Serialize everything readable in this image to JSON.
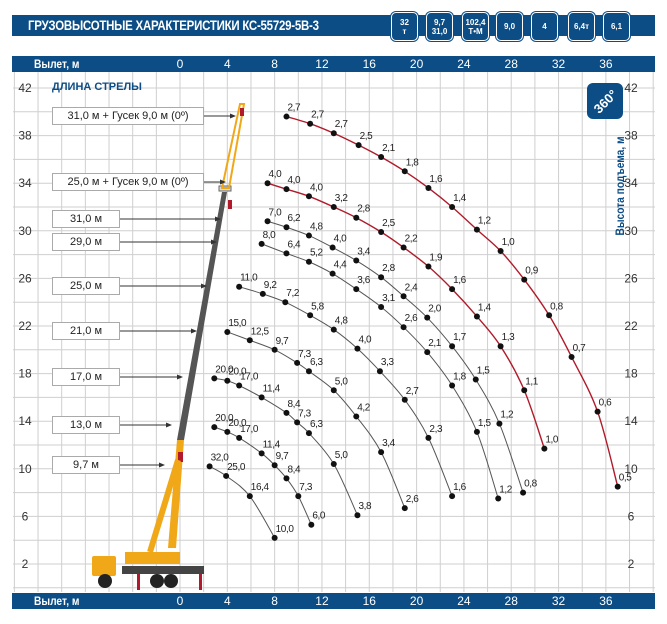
{
  "header": {
    "title": "ГРУЗОВЫСОТНЫЕ ХАРАКТЕРИСТИКИ КС-55729-5В-3",
    "icons": [
      {
        "name": "kettlebell-icon",
        "lines": [
          "32",
          "т"
        ]
      },
      {
        "name": "telescopic-boom-icon",
        "lines": [
          "9,7",
          "31,0"
        ]
      },
      {
        "name": "load-moment-icon",
        "lines": [
          "102,4",
          "Т•М"
        ]
      },
      {
        "name": "jib-icon",
        "lines": [
          "9,0"
        ]
      },
      {
        "name": "sections-icon",
        "lines": [
          "4"
        ]
      },
      {
        "name": "counterweight-icon",
        "lines": [
          "6,4т"
        ]
      },
      {
        "name": "outrigger-base-icon",
        "lines": [
          "6,1"
        ]
      }
    ]
  },
  "axis": {
    "x_label": "Вылет, м",
    "y_label": "Высота подъема, м",
    "x_ticks": [
      "0",
      "4",
      "8",
      "12",
      "16",
      "20",
      "24",
      "28",
      "32",
      "36"
    ],
    "y_ticks": [
      "42",
      "38",
      "34",
      "30",
      "26",
      "22",
      "18",
      "14",
      "10",
      "6",
      "2"
    ]
  },
  "boom_title": "ДЛИНА СТРЕЛЫ",
  "rotation_badge": "360°",
  "colors": {
    "brand": "#0d4d85",
    "jib_curve": "#b01a2a",
    "boom_curve": "#555555",
    "crane": "#f0a818"
  },
  "chart_data": {
    "type": "line",
    "xlabel": "Вылет, м",
    "ylabel": "Высота подъема, м",
    "xlim": [
      -14,
      40
    ],
    "ylim": [
      0,
      43
    ],
    "grid": true,
    "note_point_format": "[radius m, height m, load t]",
    "series": [
      {
        "name": "31,0 м + Гусек 9,0 м (0º)",
        "jib": true,
        "points": [
          [
            9.0,
            39.6,
            "2,7"
          ],
          [
            11.0,
            39.0,
            "2,7"
          ],
          [
            13.0,
            38.2,
            "2,7"
          ],
          [
            15.1,
            37.2,
            "2,5"
          ],
          [
            17.0,
            36.2,
            "2,1"
          ],
          [
            19.0,
            35.0,
            "1,8"
          ],
          [
            21.0,
            33.6,
            "1,6"
          ],
          [
            23.0,
            32.0,
            "1,4"
          ],
          [
            25.1,
            30.1,
            "1,2"
          ],
          [
            27.1,
            28.3,
            "1,0"
          ],
          [
            29.1,
            25.9,
            "0,9"
          ],
          [
            31.2,
            22.9,
            "0,8"
          ],
          [
            33.1,
            19.4,
            "0,7"
          ],
          [
            35.3,
            14.8,
            "0,6"
          ],
          [
            37.0,
            8.5,
            "0,5"
          ]
        ]
      },
      {
        "name": "25,0 м + Гусек 9,0 м (0º)",
        "jib": true,
        "points": [
          [
            7.4,
            34.0,
            "4,0"
          ],
          [
            9.0,
            33.5,
            "4,0"
          ],
          [
            10.9,
            32.9,
            "4,0"
          ],
          [
            13.0,
            32.0,
            "3,2"
          ],
          [
            14.9,
            31.1,
            "2,8"
          ],
          [
            17.0,
            29.9,
            "2,5"
          ],
          [
            18.9,
            28.6,
            "2,2"
          ],
          [
            21.0,
            27.0,
            "1,9"
          ],
          [
            23.0,
            25.1,
            "1,6"
          ],
          [
            25.1,
            22.8,
            "1,4"
          ],
          [
            27.1,
            20.3,
            "1,3"
          ],
          [
            29.1,
            16.6,
            "1,1"
          ],
          [
            30.8,
            11.7,
            "1,0"
          ]
        ]
      },
      {
        "name": "31,0 м",
        "jib": false,
        "points": [
          [
            7.4,
            30.8,
            "7,0"
          ],
          [
            9.0,
            30.3,
            "6,2"
          ],
          [
            10.9,
            29.6,
            "4,8"
          ],
          [
            12.9,
            28.6,
            "4,0"
          ],
          [
            14.9,
            27.5,
            "3,4"
          ],
          [
            17.0,
            26.1,
            "2,8"
          ],
          [
            18.9,
            24.5,
            "2,4"
          ],
          [
            20.9,
            22.7,
            "2,0"
          ],
          [
            23.0,
            20.3,
            "1,7"
          ],
          [
            25.0,
            17.5,
            "1,5"
          ],
          [
            27.0,
            13.8,
            "1,2"
          ],
          [
            29.0,
            8.0,
            "0,8"
          ]
        ]
      },
      {
        "name": "29,0 м",
        "jib": false,
        "points": [
          [
            6.9,
            28.9,
            "8,0"
          ],
          [
            9.0,
            28.1,
            "6,4"
          ],
          [
            10.9,
            27.4,
            "5,2"
          ],
          [
            12.9,
            26.4,
            "4,4"
          ],
          [
            14.9,
            25.1,
            "3,6"
          ],
          [
            17.0,
            23.6,
            "3,1"
          ],
          [
            18.9,
            21.9,
            "2,6"
          ],
          [
            20.9,
            19.8,
            "2,1"
          ],
          [
            23.0,
            17.0,
            "1,8"
          ],
          [
            25.1,
            13.1,
            "1,5"
          ],
          [
            26.9,
            7.5,
            "1,2"
          ]
        ]
      },
      {
        "name": "25,0 м",
        "jib": false,
        "points": [
          [
            5.0,
            25.3,
            "11,0"
          ],
          [
            7.0,
            24.7,
            "9,2"
          ],
          [
            8.9,
            24.0,
            "7,2"
          ],
          [
            11.0,
            22.9,
            "5,8"
          ],
          [
            13.0,
            21.7,
            "4,8"
          ],
          [
            15.0,
            20.1,
            "4,0"
          ],
          [
            16.9,
            18.2,
            "3,3"
          ],
          [
            19.0,
            15.8,
            "2,7"
          ],
          [
            21.0,
            12.6,
            "2,3"
          ],
          [
            23.0,
            7.7,
            "1,6"
          ]
        ]
      },
      {
        "name": "21,0 м",
        "jib": false,
        "points": [
          [
            4.0,
            21.5,
            "15,0"
          ],
          [
            5.9,
            20.8,
            "12,5"
          ],
          [
            8.0,
            20.0,
            "9,7"
          ],
          [
            9.9,
            18.9,
            "7,3"
          ],
          [
            10.9,
            18.2,
            "6,3"
          ],
          [
            13.0,
            16.6,
            "5,0"
          ],
          [
            14.9,
            14.4,
            "4,2"
          ],
          [
            17.0,
            11.4,
            "3,4"
          ],
          [
            19.0,
            6.7,
            "2,6"
          ]
        ]
      },
      {
        "name": "17,0 м",
        "jib": false,
        "points": [
          [
            2.9,
            17.6,
            "20,0"
          ],
          [
            4.0,
            17.4,
            "20,0"
          ],
          [
            5.0,
            17.0,
            "17,0"
          ],
          [
            6.9,
            16.0,
            "11,4"
          ],
          [
            9.0,
            14.7,
            "8,4"
          ],
          [
            9.9,
            13.9,
            "7,3"
          ],
          [
            10.9,
            13.0,
            "6,3"
          ],
          [
            13.0,
            10.4,
            "5,0"
          ],
          [
            15.0,
            6.1,
            "3,8"
          ]
        ]
      },
      {
        "name": "13,0 м",
        "jib": false,
        "points": [
          [
            2.9,
            13.5,
            "20,0"
          ],
          [
            4.0,
            13.1,
            "20,0"
          ],
          [
            5.0,
            12.6,
            "17,0"
          ],
          [
            6.9,
            11.3,
            "11,4"
          ],
          [
            8.0,
            10.3,
            "9,7"
          ],
          [
            9.0,
            9.2,
            "8,4"
          ],
          [
            10.0,
            7.7,
            "7,3"
          ],
          [
            11.1,
            5.3,
            "6,0"
          ]
        ]
      },
      {
        "name": "9,7 м",
        "jib": false,
        "points": [
          [
            2.5,
            10.2,
            "32,0"
          ],
          [
            3.9,
            9.4,
            "25,0"
          ],
          [
            5.9,
            7.7,
            "16,4"
          ],
          [
            8.0,
            4.2,
            "10,0"
          ]
        ]
      }
    ]
  }
}
